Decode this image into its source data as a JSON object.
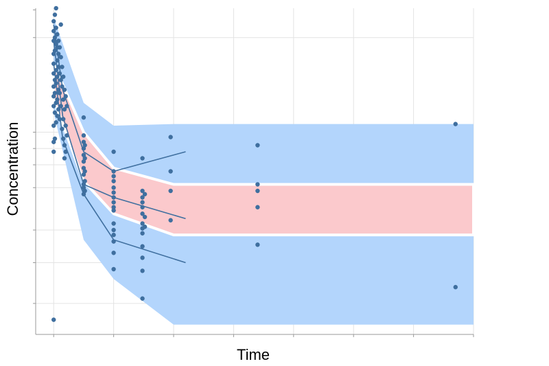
{
  "chart_data": {
    "type": "scatter",
    "title": "",
    "xlabel": "Time",
    "ylabel": "Concentration",
    "xlim": [
      -0.3,
      7
    ],
    "ylim": [
      0,
      10
    ],
    "grid": true,
    "tick_labels_shown": false,
    "colors": {
      "points": "#3f6f9f",
      "median_lines": "#3f6f9f",
      "outer_band": "#b3d5fc",
      "inner_band": "#fbc9cc",
      "grid": "#e3e3e3",
      "axis": "#999999"
    },
    "outer_band": {
      "x": [
        0,
        0.5,
        1,
        2,
        7
      ],
      "upper": [
        9.7,
        7.1,
        6.4,
        6.45,
        6.45
      ],
      "lower": [
        6.8,
        2.9,
        1.7,
        0.3,
        0.3
      ]
    },
    "inner_band": {
      "x": [
        0,
        0.5,
        1,
        2,
        7
      ],
      "upper": [
        8.3,
        6.2,
        5.1,
        4.6,
        4.6
      ],
      "lower": [
        7.2,
        4.7,
        3.7,
        3.05,
        3.05
      ]
    },
    "median_lines": [
      {
        "x": [
          0,
          0.15,
          0.5,
          1,
          2.2
        ],
        "y": [
          9.5,
          7.5,
          5.6,
          5.0,
          5.6
        ]
      },
      {
        "x": [
          0,
          0.15,
          0.5,
          1,
          2.2
        ],
        "y": [
          9.0,
          6.7,
          4.6,
          4.2,
          3.55
        ]
      },
      {
        "x": [
          0,
          0.15,
          0.5,
          1,
          2.2
        ],
        "y": [
          8.3,
          6.0,
          4.3,
          2.9,
          2.2
        ]
      }
    ],
    "points": [
      {
        "x": 0.0,
        "y": 9.6
      },
      {
        "x": 0.0,
        "y": 9.3
      },
      {
        "x": 0.0,
        "y": 9.0
      },
      {
        "x": 0.0,
        "y": 8.6
      },
      {
        "x": 0.0,
        "y": 8.3
      },
      {
        "x": 0.0,
        "y": 8.0
      },
      {
        "x": 0.0,
        "y": 7.6
      },
      {
        "x": 0.0,
        "y": 7.3
      },
      {
        "x": 0.0,
        "y": 7.0
      },
      {
        "x": 0.0,
        "y": 6.4
      },
      {
        "x": 0.0,
        "y": 5.9
      },
      {
        "x": 0.0,
        "y": 5.6
      },
      {
        "x": 0.0,
        "y": 0.45
      },
      {
        "x": 0.02,
        "y": 9.8
      },
      {
        "x": 0.02,
        "y": 9.1
      },
      {
        "x": 0.02,
        "y": 8.7
      },
      {
        "x": 0.02,
        "y": 7.8
      },
      {
        "x": 0.02,
        "y": 7.4
      },
      {
        "x": 0.02,
        "y": 6.8
      },
      {
        "x": 0.02,
        "y": 6.0
      },
      {
        "x": 0.04,
        "y": 10.0
      },
      {
        "x": 0.04,
        "y": 9.4
      },
      {
        "x": 0.04,
        "y": 8.9
      },
      {
        "x": 0.04,
        "y": 8.1
      },
      {
        "x": 0.04,
        "y": 7.7
      },
      {
        "x": 0.04,
        "y": 7.1
      },
      {
        "x": 0.04,
        "y": 6.5
      },
      {
        "x": 0.06,
        "y": 9.2
      },
      {
        "x": 0.06,
        "y": 8.8
      },
      {
        "x": 0.06,
        "y": 8.4
      },
      {
        "x": 0.06,
        "y": 7.9
      },
      {
        "x": 0.06,
        "y": 7.2
      },
      {
        "x": 0.06,
        "y": 6.7
      },
      {
        "x": 0.08,
        "y": 9.0
      },
      {
        "x": 0.08,
        "y": 8.6
      },
      {
        "x": 0.08,
        "y": 8.2
      },
      {
        "x": 0.08,
        "y": 7.5
      },
      {
        "x": 0.08,
        "y": 6.9
      },
      {
        "x": 0.1,
        "y": 8.8
      },
      {
        "x": 0.1,
        "y": 8.0
      },
      {
        "x": 0.1,
        "y": 7.4
      },
      {
        "x": 0.1,
        "y": 6.6
      },
      {
        "x": 0.12,
        "y": 9.5
      },
      {
        "x": 0.12,
        "y": 8.5
      },
      {
        "x": 0.12,
        "y": 7.8
      },
      {
        "x": 0.12,
        "y": 7.0
      },
      {
        "x": 0.14,
        "y": 8.2
      },
      {
        "x": 0.14,
        "y": 7.6
      },
      {
        "x": 0.14,
        "y": 6.3
      },
      {
        "x": 0.16,
        "y": 7.9
      },
      {
        "x": 0.16,
        "y": 7.2
      },
      {
        "x": 0.16,
        "y": 6.6
      },
      {
        "x": 0.16,
        "y": 6.0
      },
      {
        "x": 0.18,
        "y": 7.5
      },
      {
        "x": 0.18,
        "y": 6.9
      },
      {
        "x": 0.18,
        "y": 5.8
      },
      {
        "x": 0.18,
        "y": 5.4
      },
      {
        "x": 0.2,
        "y": 7.3
      },
      {
        "x": 0.2,
        "y": 6.4
      },
      {
        "x": 0.2,
        "y": 5.6
      },
      {
        "x": 0.22,
        "y": 7.0
      },
      {
        "x": 0.22,
        "y": 6.1
      },
      {
        "x": 0.5,
        "y": 6.65
      },
      {
        "x": 0.5,
        "y": 6.1
      },
      {
        "x": 0.5,
        "y": 5.9
      },
      {
        "x": 0.5,
        "y": 5.7
      },
      {
        "x": 0.5,
        "y": 5.5
      },
      {
        "x": 0.5,
        "y": 5.3
      },
      {
        "x": 0.5,
        "y": 5.1
      },
      {
        "x": 0.5,
        "y": 4.9
      },
      {
        "x": 0.5,
        "y": 4.6
      },
      {
        "x": 0.5,
        "y": 4.5
      },
      {
        "x": 0.5,
        "y": 4.3
      },
      {
        "x": 0.52,
        "y": 5.8
      },
      {
        "x": 0.52,
        "y": 5.4
      },
      {
        "x": 0.52,
        "y": 5.0
      },
      {
        "x": 0.52,
        "y": 4.7
      },
      {
        "x": 0.52,
        "y": 4.4
      },
      {
        "x": 1.0,
        "y": 5.6
      },
      {
        "x": 1.0,
        "y": 5.0
      },
      {
        "x": 1.0,
        "y": 4.85
      },
      {
        "x": 1.0,
        "y": 4.7
      },
      {
        "x": 1.0,
        "y": 4.5
      },
      {
        "x": 1.0,
        "y": 4.35
      },
      {
        "x": 1.0,
        "y": 4.2
      },
      {
        "x": 1.0,
        "y": 4.05
      },
      {
        "x": 1.0,
        "y": 3.9
      },
      {
        "x": 1.0,
        "y": 3.8
      },
      {
        "x": 1.0,
        "y": 3.4
      },
      {
        "x": 1.0,
        "y": 3.2
      },
      {
        "x": 1.0,
        "y": 3.05
      },
      {
        "x": 1.0,
        "y": 2.85
      },
      {
        "x": 1.0,
        "y": 2.5
      },
      {
        "x": 1.0,
        "y": 2.0
      },
      {
        "x": 1.48,
        "y": 5.4
      },
      {
        "x": 1.48,
        "y": 4.4
      },
      {
        "x": 1.48,
        "y": 4.2
      },
      {
        "x": 1.48,
        "y": 4.05
      },
      {
        "x": 1.48,
        "y": 3.9
      },
      {
        "x": 1.48,
        "y": 3.7
      },
      {
        "x": 1.48,
        "y": 3.4
      },
      {
        "x": 1.48,
        "y": 3.25
      },
      {
        "x": 1.48,
        "y": 3.1
      },
      {
        "x": 1.48,
        "y": 2.7
      },
      {
        "x": 1.48,
        "y": 2.35
      },
      {
        "x": 1.48,
        "y": 1.95
      },
      {
        "x": 1.48,
        "y": 1.1
      },
      {
        "x": 1.52,
        "y": 4.3
      },
      {
        "x": 1.52,
        "y": 3.6
      },
      {
        "x": 1.52,
        "y": 3.3
      },
      {
        "x": 1.95,
        "y": 6.05
      },
      {
        "x": 1.95,
        "y": 5.0
      },
      {
        "x": 1.95,
        "y": 4.4
      },
      {
        "x": 1.95,
        "y": 3.5
      },
      {
        "x": 3.4,
        "y": 5.8
      },
      {
        "x": 3.4,
        "y": 4.6
      },
      {
        "x": 3.4,
        "y": 4.4
      },
      {
        "x": 3.4,
        "y": 3.9
      },
      {
        "x": 3.4,
        "y": 2.75
      },
      {
        "x": 6.7,
        "y": 6.45
      },
      {
        "x": 6.7,
        "y": 1.45
      }
    ]
  }
}
